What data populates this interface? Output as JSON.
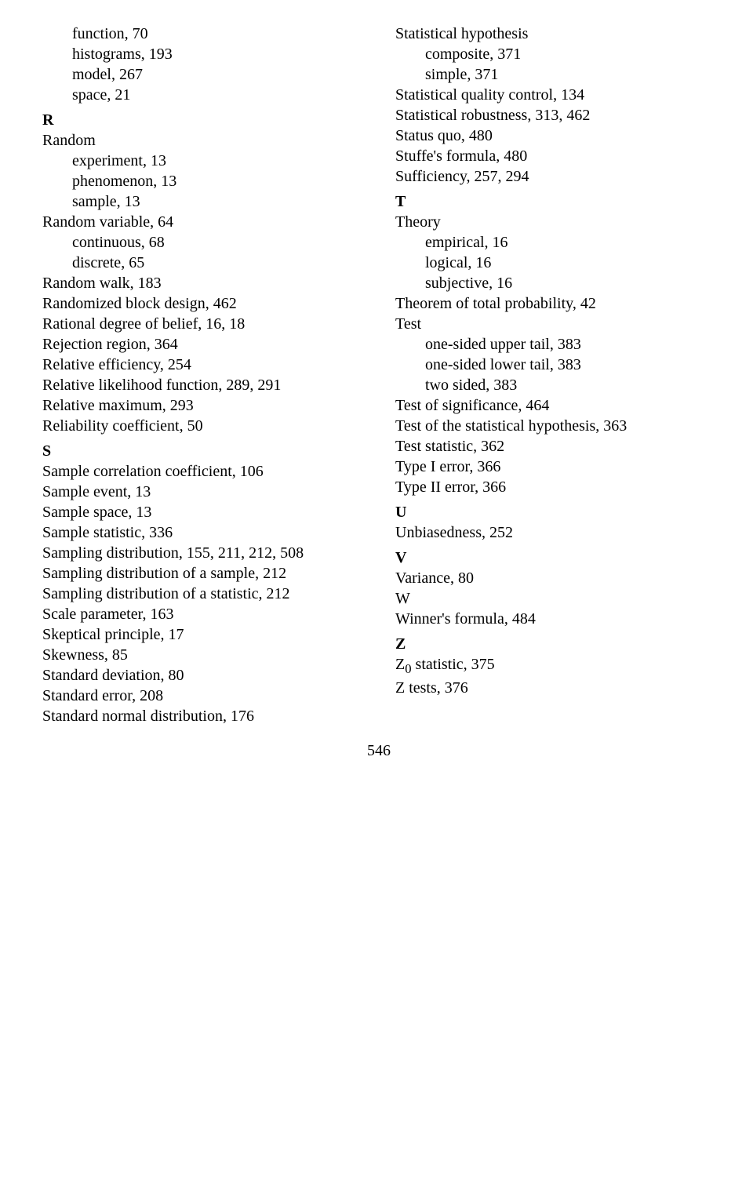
{
  "left": [
    {
      "t": "sub",
      "v": "function, 70"
    },
    {
      "t": "sub",
      "v": "histograms, 193"
    },
    {
      "t": "sub",
      "v": "model, 267"
    },
    {
      "t": "sub",
      "v": "space, 21"
    },
    {
      "t": "letter",
      "v": "R"
    },
    {
      "t": "entry",
      "v": "Random"
    },
    {
      "t": "sub",
      "v": "experiment, 13"
    },
    {
      "t": "sub",
      "v": "phenomenon, 13"
    },
    {
      "t": "sub",
      "v": "sample, 13"
    },
    {
      "t": "entry",
      "v": "Random variable, 64"
    },
    {
      "t": "sub",
      "v": "continuous, 68"
    },
    {
      "t": "sub",
      "v": "discrete, 65"
    },
    {
      "t": "entry",
      "v": "Random walk, 183"
    },
    {
      "t": "entry",
      "v": "Randomized block design, 462"
    },
    {
      "t": "entry",
      "v": "Rational degree of belief, 16, 18"
    },
    {
      "t": "entry",
      "v": "Rejection region, 364"
    },
    {
      "t": "entry",
      "v": "Relative efficiency, 254"
    },
    {
      "t": "entry",
      "v": "Relative likelihood function, 289, 291"
    },
    {
      "t": "entry",
      "v": "Relative maximum, 293"
    },
    {
      "t": "entry",
      "v": "Reliability coefficient, 50"
    },
    {
      "t": "letter",
      "v": "S"
    },
    {
      "t": "entry",
      "v": "Sample correlation coefficient, 106"
    },
    {
      "t": "entry",
      "v": "Sample event, 13"
    },
    {
      "t": "entry",
      "v": "Sample space, 13"
    },
    {
      "t": "entry",
      "v": "Sample statistic, 336"
    },
    {
      "t": "entry",
      "v": "Sampling distribution, 155, 211, 212, 508"
    },
    {
      "t": "entry",
      "v": "Sampling distribution of a sample, 212"
    },
    {
      "t": "entry",
      "v": "Sampling distribution of a statistic, 212"
    },
    {
      "t": "entry",
      "v": "Scale parameter, 163"
    },
    {
      "t": "entry",
      "v": "Skeptical principle, 17"
    },
    {
      "t": "entry",
      "v": "Skewness, 85"
    },
    {
      "t": "entry",
      "v": "Standard deviation, 80"
    },
    {
      "t": "entry",
      "v": "Standard error, 208"
    },
    {
      "t": "entry",
      "v": "Standard normal distribution, 176"
    }
  ],
  "right": [
    {
      "t": "entry",
      "v": "Statistical hypothesis"
    },
    {
      "t": "sub",
      "v": "composite, 371"
    },
    {
      "t": "sub",
      "v": "simple, 371"
    },
    {
      "t": "entry",
      "v": "Statistical quality control, 134"
    },
    {
      "t": "entry",
      "v": "Statistical robustness, 313, 462"
    },
    {
      "t": "entry",
      "v": "Status quo, 480"
    },
    {
      "t": "entry",
      "v": "Stuffe's formula, 480"
    },
    {
      "t": "entry",
      "v": "Sufficiency, 257, 294"
    },
    {
      "t": "letter",
      "v": "T"
    },
    {
      "t": "entry",
      "v": "Theory"
    },
    {
      "t": "sub",
      "v": "empirical, 16"
    },
    {
      "t": "sub",
      "v": "logical, 16"
    },
    {
      "t": "sub",
      "v": "subjective, 16"
    },
    {
      "t": "entry",
      "v": "Theorem of total probability, 42"
    },
    {
      "t": "entry",
      "v": "Test"
    },
    {
      "t": "sub",
      "v": "one-sided upper tail, 383"
    },
    {
      "t": "sub",
      "v": "one-sided lower tail, 383"
    },
    {
      "t": "sub",
      "v": "two sided, 383"
    },
    {
      "t": "entry",
      "v": "Test of significance, 464"
    },
    {
      "t": "entry",
      "v": "Test of the statistical hypothesis, 363"
    },
    {
      "t": "entry",
      "v": "Test statistic, 362"
    },
    {
      "t": "entry",
      "v": "Type I error, 366"
    },
    {
      "t": "entry",
      "v": "Type II error, 366"
    },
    {
      "t": "letter",
      "v": "U"
    },
    {
      "t": "entry",
      "v": "Unbiasedness, 252"
    },
    {
      "t": "letter",
      "v": "V"
    },
    {
      "t": "entry",
      "v": "Variance, 80"
    },
    {
      "t": "letterplain",
      "v": "W"
    },
    {
      "t": "entry",
      "v": "Winner's formula, 484"
    },
    {
      "t": "letter",
      "v": "Z"
    },
    {
      "t": "z0",
      "pre": "Z",
      "sub": "0",
      "post": " statistic, 375"
    },
    {
      "t": "entry",
      "v": "Z tests, 376"
    }
  ],
  "page": "546"
}
